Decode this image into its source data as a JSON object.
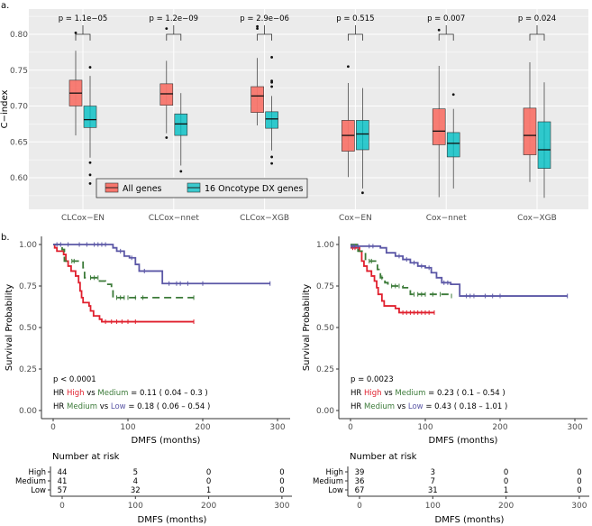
{
  "panel_labels": {
    "a": "a.",
    "b": "b."
  },
  "colors": {
    "all": "#F8766D",
    "onco": "#00BFC4",
    "high": "#e0202e",
    "medium": "#3b7a38",
    "low": "#5b57a6",
    "panel_bg": "#ebebeb"
  },
  "chart_data": [
    {
      "type": "box",
      "title": "",
      "ylabel": "C−index",
      "xlabel": "",
      "ylim": [
        0.565,
        0.83
      ],
      "yticks": [
        "0.60",
        "0.65",
        "0.70",
        "0.75",
        "0.80"
      ],
      "categories": [
        "CLCox−EN",
        "CLCox−nnet",
        "CLCox−XGB",
        "Cox−EN",
        "Cox−nnet",
        "Cox−XGB"
      ],
      "pvalues": [
        "p = 1.1e−05",
        "p = 1.2e−09",
        "p = 2.9e−06",
        "p = 0.515",
        "p = 0.007",
        "p = 0.024"
      ],
      "legend": {
        "position": "bottom-left",
        "entries": [
          "All genes",
          "16 Oncotype DX genes"
        ]
      },
      "series": [
        {
          "name": "All genes",
          "boxes": [
            {
              "lo": 0.659,
              "q1": 0.7,
              "med": 0.718,
              "q3": 0.736,
              "hi": 0.777,
              "out": [
                0.802
              ]
            },
            {
              "lo": 0.662,
              "q1": 0.701,
              "med": 0.717,
              "q3": 0.731,
              "hi": 0.763,
              "out": [
                0.808,
                0.656
              ]
            },
            {
              "lo": 0.673,
              "q1": 0.691,
              "med": 0.714,
              "q3": 0.727,
              "hi": 0.767,
              "out": [
                0.811,
                0.808
              ]
            },
            {
              "lo": 0.601,
              "q1": 0.637,
              "med": 0.659,
              "q3": 0.68,
              "hi": 0.732,
              "out": [
                0.755
              ]
            },
            {
              "lo": 0.573,
              "q1": 0.646,
              "med": 0.665,
              "q3": 0.696,
              "hi": 0.756,
              "out": [
                0.806
              ]
            },
            {
              "lo": 0.594,
              "q1": 0.632,
              "med": 0.659,
              "q3": 0.697,
              "hi": 0.761,
              "out": []
            }
          ]
        },
        {
          "name": "16 Oncotype DX genes",
          "boxes": [
            {
              "lo": 0.628,
              "q1": 0.67,
              "med": 0.681,
              "q3": 0.7,
              "hi": 0.742,
              "out": [
                0.754,
                0.621,
                0.604,
                0.592
              ]
            },
            {
              "lo": 0.617,
              "q1": 0.659,
              "med": 0.675,
              "q3": 0.689,
              "hi": 0.718,
              "out": [
                0.609
              ]
            },
            {
              "lo": 0.638,
              "q1": 0.669,
              "med": 0.682,
              "q3": 0.692,
              "hi": 0.714,
              "out": [
                0.768,
                0.735,
                0.733,
                0.727,
                0.629,
                0.62
              ]
            },
            {
              "lo": 0.585,
              "q1": 0.639,
              "med": 0.661,
              "q3": 0.68,
              "hi": 0.725,
              "out": [
                0.579
              ]
            },
            {
              "lo": 0.585,
              "q1": 0.629,
              "med": 0.648,
              "q3": 0.663,
              "hi": 0.696,
              "out": [
                0.716
              ]
            },
            {
              "lo": 0.572,
              "q1": 0.613,
              "med": 0.639,
              "q3": 0.678,
              "hi": 0.733,
              "out": []
            }
          ]
        }
      ]
    },
    {
      "type": "line",
      "subtype": "kaplan-meier",
      "ylabel": "Survival Probability",
      "xlabel": "DMFS (months)",
      "xlim": [
        0,
        300
      ],
      "ylim": [
        0,
        1
      ],
      "xticks": [
        "0",
        "100",
        "200",
        "300"
      ],
      "yticks": [
        "0.00",
        "0.25",
        "0.50",
        "0.75",
        "1.00"
      ],
      "pvalue": "p < 0.0001",
      "hr": [
        {
          "prefix": "HR ",
          "a": "High",
          "vs": " vs ",
          "b": "Medium",
          "val": " =  0.11  ( 0.04 – 0.3 )"
        },
        {
          "prefix": "HR ",
          "a": "Medium",
          "vs": " vs ",
          "b": "Low",
          "val": " =  0.18  ( 0.06 – 0.54 )"
        }
      ],
      "series": [
        {
          "name": "High",
          "steps": [
            [
              0,
              1
            ],
            [
              2,
              0.98
            ],
            [
              5,
              0.96
            ],
            [
              14,
              0.94
            ],
            [
              17,
              0.9
            ],
            [
              20,
              0.87
            ],
            [
              24,
              0.84
            ],
            [
              30,
              0.81
            ],
            [
              34,
              0.77
            ],
            [
              36,
              0.72
            ],
            [
              38,
              0.68
            ],
            [
              40,
              0.65
            ],
            [
              48,
              0.63
            ],
            [
              50,
              0.6
            ],
            [
              54,
              0.57
            ],
            [
              62,
              0.55
            ],
            [
              65,
              0.535
            ],
            [
              188,
              0.535
            ]
          ],
          "censor": [
            70,
            78,
            85,
            92,
            100,
            110,
            188
          ]
        },
        {
          "name": "Medium",
          "steps": [
            [
              0,
              1
            ],
            [
              12,
              0.97
            ],
            [
              15,
              0.9
            ],
            [
              40,
              0.86
            ],
            [
              42,
              0.8
            ],
            [
              62,
              0.78
            ],
            [
              70,
              0.76
            ],
            [
              78,
              0.73
            ],
            [
              80,
              0.68
            ],
            [
              188,
              0.68
            ]
          ],
          "censor": [
            25,
            28,
            50,
            55,
            60,
            85,
            90,
            95,
            100,
            110,
            120,
            188
          ]
        },
        {
          "name": "Low",
          "steps": [
            [
              0,
              1
            ],
            [
              80,
              0.98
            ],
            [
              85,
              0.96
            ],
            [
              95,
              0.93
            ],
            [
              102,
              0.92
            ],
            [
              110,
              0.88
            ],
            [
              115,
              0.84
            ],
            [
              127,
              0.84
            ],
            [
              146,
              0.765
            ],
            [
              290,
              0.765
            ]
          ],
          "censor": [
            5,
            10,
            20,
            35,
            45,
            55,
            60,
            65,
            70,
            90,
            105,
            122,
            155,
            165,
            170,
            180,
            200,
            290
          ]
        }
      ],
      "risk_table": {
        "title": "Number at risk",
        "xlabel": "DMFS (months)",
        "rows": [
          {
            "name": "High",
            "values": [
              "44",
              "5",
              "0",
              "0"
            ]
          },
          {
            "name": "Medium",
            "values": [
              "41",
              "4",
              "0",
              "0"
            ]
          },
          {
            "name": "Low",
            "values": [
              "57",
              "32",
              "1",
              "0"
            ]
          }
        ]
      }
    },
    {
      "type": "line",
      "subtype": "kaplan-meier",
      "ylabel": "Survival Probability",
      "xlabel": "DMFS (months)",
      "xlim": [
        0,
        300
      ],
      "ylim": [
        0,
        1
      ],
      "xticks": [
        "0",
        "100",
        "200",
        "300"
      ],
      "yticks": [
        "0.00",
        "0.25",
        "0.50",
        "0.75",
        "1.00"
      ],
      "pvalue": "p = 0.0023",
      "hr": [
        {
          "prefix": "HR ",
          "a": "High",
          "vs": " vs ",
          "b": "Medium",
          "val": " =  0.23  ( 0.1 – 0.54 )"
        },
        {
          "prefix": "HR ",
          "a": "Medium",
          "vs": " vs ",
          "b": "Low",
          "val": " =  0.43  ( 0.18 – 1.01 )"
        }
      ],
      "series": [
        {
          "name": "High",
          "steps": [
            [
              0,
              0.98
            ],
            [
              12,
              0.96
            ],
            [
              15,
              0.9
            ],
            [
              18,
              0.87
            ],
            [
              22,
              0.84
            ],
            [
              28,
              0.81
            ],
            [
              32,
              0.78
            ],
            [
              35,
              0.74
            ],
            [
              37,
              0.7
            ],
            [
              42,
              0.66
            ],
            [
              45,
              0.63
            ],
            [
              60,
              0.615
            ],
            [
              65,
              0.59
            ],
            [
              112,
              0.59
            ]
          ],
          "censor": [
            3,
            6,
            70,
            75,
            80,
            85,
            90,
            95,
            100,
            105,
            112
          ]
        },
        {
          "name": "Medium",
          "steps": [
            [
              0,
              1
            ],
            [
              10,
              0.96
            ],
            [
              20,
              0.9
            ],
            [
              36,
              0.85
            ],
            [
              40,
              0.8
            ],
            [
              46,
              0.77
            ],
            [
              50,
              0.75
            ],
            [
              70,
              0.74
            ],
            [
              80,
              0.7
            ],
            [
              135,
              0.69
            ]
          ],
          "censor": [
            25,
            28,
            42,
            55,
            60,
            65,
            85,
            90,
            95,
            100,
            110,
            120,
            135
          ]
        },
        {
          "name": "Low",
          "steps": [
            [
              0,
              0.99
            ],
            [
              40,
              0.98
            ],
            [
              48,
              0.95
            ],
            [
              60,
              0.93
            ],
            [
              70,
              0.91
            ],
            [
              80,
              0.89
            ],
            [
              90,
              0.87
            ],
            [
              100,
              0.86
            ],
            [
              108,
              0.83
            ],
            [
              115,
              0.8
            ],
            [
              122,
              0.77
            ],
            [
              134,
              0.76
            ],
            [
              146,
              0.69
            ],
            [
              290,
              0.69
            ]
          ],
          "censor": [
            2,
            5,
            10,
            25,
            30,
            65,
            75,
            85,
            95,
            105,
            125,
            130,
            155,
            160,
            165,
            180,
            190,
            200,
            290
          ]
        }
      ],
      "risk_table": {
        "title": "Number at risk",
        "xlabel": "DMFS (months)",
        "rows": [
          {
            "name": "High",
            "values": [
              "39",
              "3",
              "0",
              "0"
            ]
          },
          {
            "name": "Medium",
            "values": [
              "36",
              "7",
              "0",
              "0"
            ]
          },
          {
            "name": "Low",
            "values": [
              "67",
              "31",
              "1",
              "0"
            ]
          }
        ]
      }
    }
  ]
}
